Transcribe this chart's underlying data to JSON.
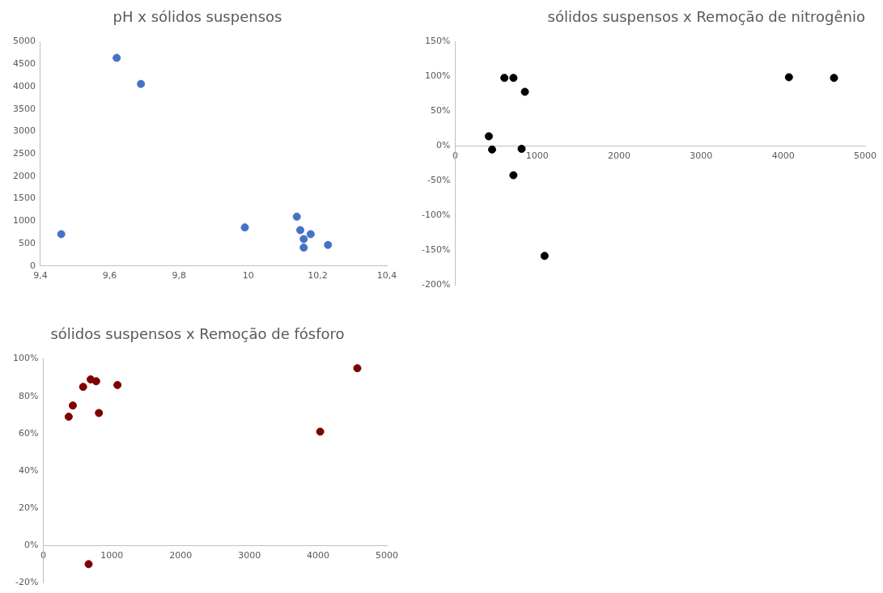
{
  "chart_data": [
    {
      "type": "scatter",
      "title": "pH x sólidos suspensos",
      "color": "#4472c4",
      "marker": "circle",
      "grid": false,
      "x": [
        9.46,
        9.62,
        9.69,
        9.99,
        10.14,
        10.15,
        10.18,
        10.16,
        10.16,
        10.23
      ],
      "values": [
        710,
        4640,
        4060,
        860,
        1100,
        800,
        710,
        600,
        410,
        470
      ],
      "xlim": [
        9.4,
        10.4
      ],
      "xticks": [
        {
          "value": 9.4,
          "label": "9,4"
        },
        {
          "value": 9.6,
          "label": "9,6"
        },
        {
          "value": 9.8,
          "label": "9,8"
        },
        10,
        {
          "value": 10.2,
          "label": "10,2"
        },
        {
          "value": 10.4,
          "label": "10,4"
        }
      ],
      "ylim": [
        0,
        5000
      ],
      "yticks": [
        0,
        500,
        1000,
        1500,
        2000,
        2500,
        3000,
        3500,
        4000,
        4500,
        5000
      ]
    },
    {
      "type": "scatter",
      "title": "sólidos suspensos x Remoção de nitrogênio",
      "color": "#000000",
      "marker": "circle",
      "grid": false,
      "x": [
        410,
        450,
        600,
        710,
        710,
        810,
        850,
        1090,
        4070,
        4620
      ],
      "values": [
        14,
        -5,
        98,
        98,
        -42,
        -4,
        78,
        -158,
        99,
        98
      ],
      "xlim": [
        0,
        5000
      ],
      "xticks": [
        0,
        1000,
        2000,
        3000,
        4000,
        5000
      ],
      "ylim": [
        -200,
        150
      ],
      "yticks": [
        {
          "value": -200,
          "label": "-200%"
        },
        {
          "value": -150,
          "label": "-150%"
        },
        {
          "value": -100,
          "label": "-100%"
        },
        {
          "value": -50,
          "label": "-50%"
        },
        {
          "value": 0,
          "label": "0%"
        },
        {
          "value": 50,
          "label": "50%"
        },
        {
          "value": 100,
          "label": "100%"
        },
        {
          "value": 150,
          "label": "150%"
        }
      ]
    },
    {
      "type": "scatter",
      "title": "sólidos suspensos x Remoção de fósforo",
      "color": "#7f0000",
      "marker": "circle",
      "grid": false,
      "x": [
        370,
        430,
        580,
        690,
        770,
        810,
        1080,
        4030,
        4570,
        660
      ],
      "values": [
        69,
        75,
        85,
        89,
        88,
        71,
        86,
        61,
        95,
        -10
      ],
      "xlim": [
        0,
        5000
      ],
      "xticks": [
        0,
        1000,
        2000,
        3000,
        4000,
        5000
      ],
      "ylim": [
        -20,
        100
      ],
      "yticks": [
        {
          "value": -20,
          "label": "-20%"
        },
        {
          "value": 0,
          "label": "0%"
        },
        {
          "value": 20,
          "label": "20%"
        },
        {
          "value": 40,
          "label": "40%"
        },
        {
          "value": 60,
          "label": "60%"
        },
        {
          "value": 80,
          "label": "80%"
        },
        {
          "value": 100,
          "label": "100%"
        }
      ]
    }
  ]
}
